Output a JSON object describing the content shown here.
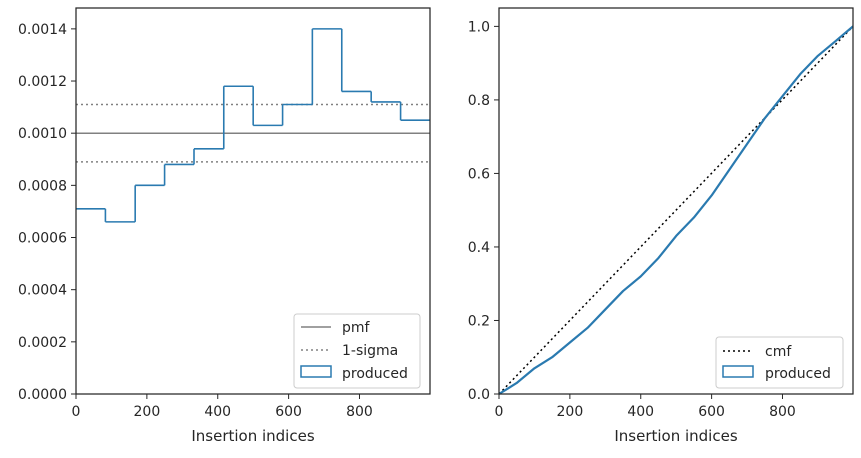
{
  "chart_data": [
    {
      "type": "histogram-step",
      "xlabel": "Insertion indices",
      "ylabel": "",
      "xlim": [
        0,
        999
      ],
      "ylim": [
        0,
        0.00148
      ],
      "xticks": [
        "0",
        "200",
        "400",
        "600",
        "800"
      ],
      "yticks": [
        "0.0000",
        "0.0002",
        "0.0004",
        "0.0006",
        "0.0008",
        "0.0010",
        "0.0012",
        "0.0014"
      ],
      "pmf": 0.001,
      "sigma_band": [
        0.00089,
        0.00111
      ],
      "bin_edges": [
        0,
        83,
        167,
        250,
        333,
        417,
        500,
        583,
        667,
        750,
        833,
        916,
        999
      ],
      "bin_values": [
        0.00071,
        0.00066,
        0.0008,
        0.00088,
        0.00094,
        0.00118,
        0.00103,
        0.00111,
        0.0014,
        0.00116,
        0.00112,
        0.00105
      ],
      "legend": [
        "pmf",
        "1-sigma",
        "produced"
      ],
      "legend_position": "lower-right",
      "colors": {
        "pmf": "#808080",
        "sigma": "#808080",
        "produced": "#2a7ab0"
      }
    },
    {
      "type": "line",
      "xlabel": "Insertion indices",
      "ylabel": "",
      "xlim": [
        0,
        999
      ],
      "ylim": [
        0,
        1.05
      ],
      "xticks": [
        "0",
        "200",
        "400",
        "600",
        "800"
      ],
      "yticks": [
        "0.0",
        "0.2",
        "0.4",
        "0.6",
        "0.8",
        "1.0"
      ],
      "cmf": [
        [
          0,
          0
        ],
        [
          999,
          1
        ]
      ],
      "produced_x": [
        0,
        50,
        100,
        150,
        200,
        250,
        300,
        350,
        400,
        450,
        500,
        550,
        600,
        650,
        700,
        750,
        800,
        850,
        900,
        950,
        999
      ],
      "produced_y": [
        0,
        0.03,
        0.07,
        0.1,
        0.14,
        0.18,
        0.23,
        0.28,
        0.32,
        0.37,
        0.43,
        0.48,
        0.54,
        0.61,
        0.68,
        0.75,
        0.81,
        0.87,
        0.92,
        0.96,
        1.0
      ],
      "legend": [
        "cmf",
        "produced"
      ],
      "legend_position": "lower-right",
      "colors": {
        "cmf": "#000000",
        "produced": "#2a7ab0"
      }
    }
  ]
}
